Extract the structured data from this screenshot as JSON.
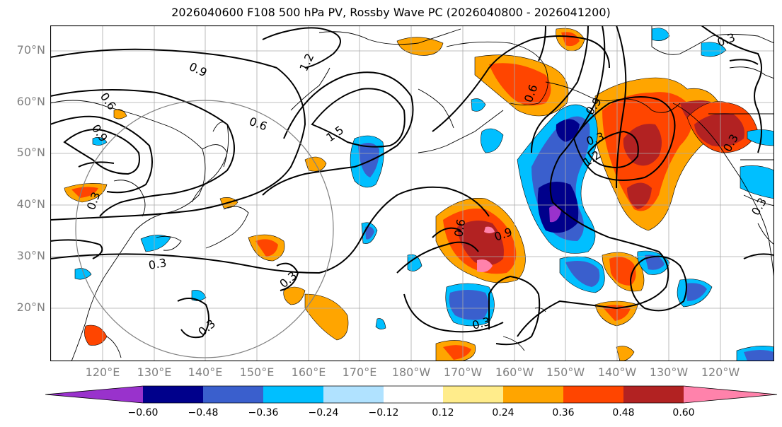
{
  "title": "2026040600 F108 500 hPa PV, Rossby Wave PC (2026040800 - 2026041200)",
  "lat_labels": [
    "70°N",
    "60°N",
    "50°N",
    "40°N",
    "30°N",
    "20°N"
  ],
  "lon_labels": [
    "120°E",
    "130°E",
    "140°E",
    "150°E",
    "160°E",
    "170°E",
    "180°W",
    "170°W",
    "160°W",
    "150°W",
    "140°W",
    "130°W",
    "120°W"
  ],
  "contour_labels": [
    "0.9",
    "0.6",
    "0.9",
    "1.2",
    "0.6",
    "1.5",
    "0.3",
    "0.3",
    "0.3",
    "0.6",
    "0.9",
    "0.3",
    "1.2",
    "0.9",
    "0.6",
    "0.3",
    "0.3",
    "0.3",
    "0.3",
    "0.3"
  ],
  "colorbar": {
    "ticks": [
      "−0.60",
      "−0.48",
      "−0.36",
      "−0.24",
      "−0.12",
      "0.12",
      "0.24",
      "0.36",
      "0.48",
      "0.60"
    ],
    "colors": [
      "#9932CC",
      "#00008B",
      "#3A5FCD",
      "#00BFFF",
      "#B0E2FF",
      "#FFFFFF",
      "#FFEC8B",
      "#FFA500",
      "#FF4500",
      "#B22222",
      "#FF82AB"
    ]
  },
  "colors": {
    "neg_strong": "#00008B",
    "neg_mid": "#3A5FCD",
    "neg_light": "#00BFFF",
    "neg_pale": "#B0E2FF",
    "neg_extreme": "#9932CC",
    "pos_pale": "#FFEC8B",
    "pos_light": "#FFA500",
    "pos_mid": "#FF4500",
    "pos_strong": "#B22222",
    "pos_extreme": "#FF82AB"
  }
}
